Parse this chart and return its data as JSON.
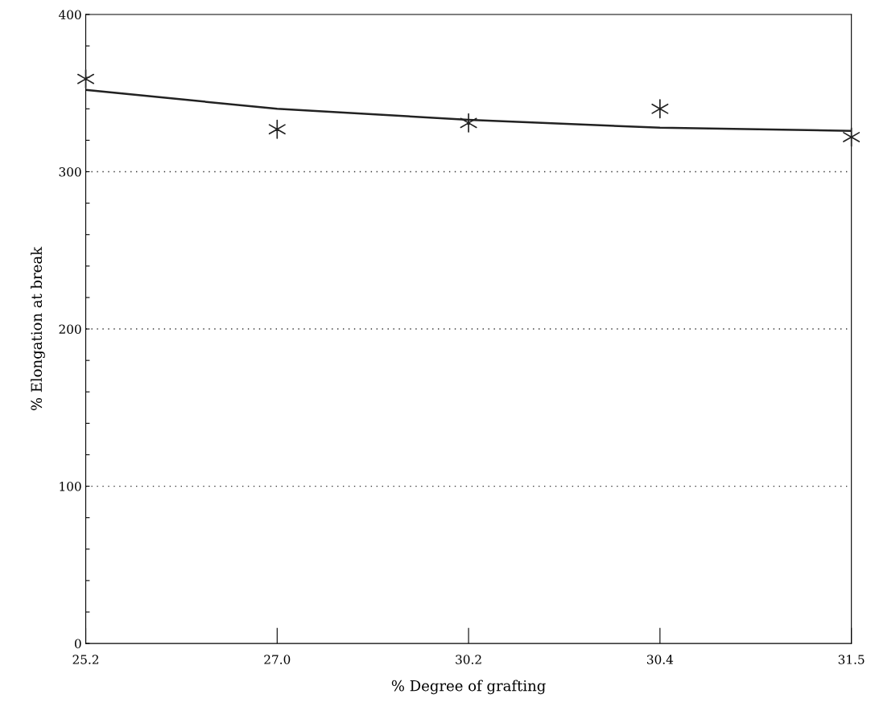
{
  "chart_data": {
    "type": "scatter",
    "xlabel": "% Degree of grafting",
    "ylabel": "% Elongation at break",
    "categories": [
      "25.2",
      "27.0",
      "30.2",
      "30.4",
      "31.5"
    ],
    "series": [
      {
        "color": "#222222",
        "marker": "cross",
        "values": [
          359,
          327,
          331,
          340,
          322
        ]
      },
      {
        "type": "line",
        "color": "#222222",
        "marker": "none",
        "line_style": "solid",
        "values": [
          352,
          340,
          333,
          328,
          326
        ]
      }
    ],
    "ylim": [
      0,
      400
    ],
    "yticks": [
      0,
      {
        "value": 20,
        "label": null
      },
      {
        "value": 40,
        "label": null
      },
      {
        "value": 60,
        "label": null
      },
      {
        "value": 80,
        "label": null
      },
      100,
      {
        "value": 120,
        "label": null
      },
      {
        "value": 140,
        "label": null
      },
      {
        "value": 160,
        "label": null
      },
      {
        "value": 180,
        "label": null
      },
      200,
      {
        "value": 220,
        "label": null
      },
      {
        "value": 240,
        "label": null
      },
      {
        "value": 260,
        "label": null
      },
      {
        "value": 280,
        "label": null
      },
      300,
      {
        "value": 320,
        "label": null
      },
      {
        "value": 340,
        "label": null
      },
      {
        "value": 360,
        "label": null
      },
      {
        "value": 380,
        "label": null
      },
      400
    ],
    "grid": "y"
  }
}
